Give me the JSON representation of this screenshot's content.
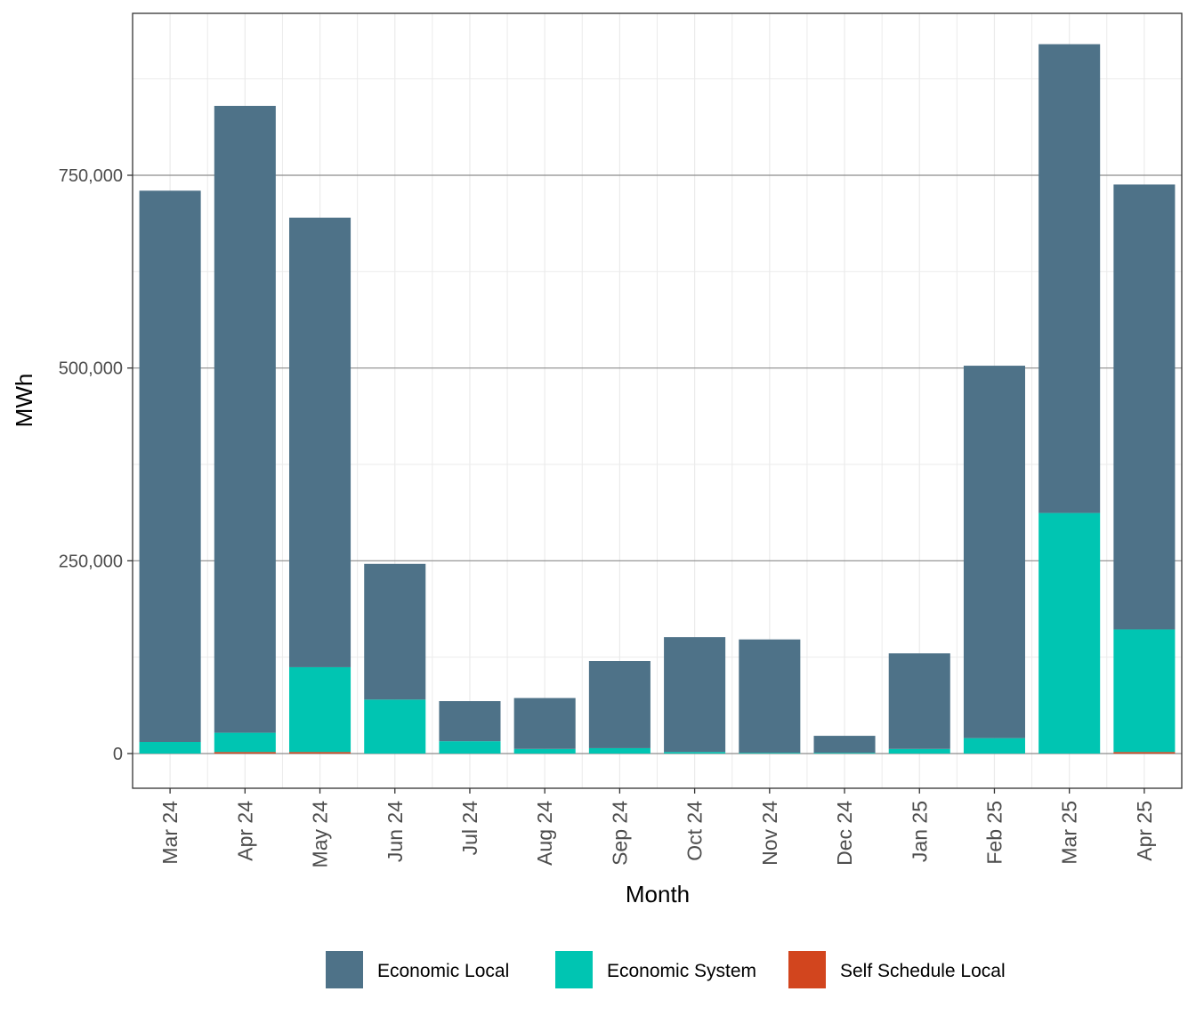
{
  "chart_data": {
    "type": "bar",
    "stacked": true,
    "categories": [
      "Mar 24",
      "Apr 24",
      "May 24",
      "Jun 24",
      "Jul 24",
      "Aug 24",
      "Sep 24",
      "Oct 24",
      "Nov 24",
      "Dec 24",
      "Jan 25",
      "Feb 25",
      "Mar 25",
      "Apr 25"
    ],
    "series": [
      {
        "name": "Self Schedule Local",
        "color": "#d2451e",
        "values": [
          0,
          2000,
          2000,
          0,
          0,
          0,
          0,
          0,
          0,
          0,
          0,
          0,
          0,
          2000
        ]
      },
      {
        "name": "Economic System",
        "color": "#00c5b2",
        "values": [
          15000,
          25000,
          110000,
          70000,
          16000,
          6000,
          7000,
          2000,
          1000,
          1000,
          6000,
          20000,
          312000,
          159000
        ]
      },
      {
        "name": "Economic Local",
        "color": "#4e7288",
        "values": [
          715000,
          813000,
          583000,
          176000,
          52000,
          66000,
          113000,
          149000,
          147000,
          22000,
          124000,
          483000,
          608000,
          577000
        ]
      }
    ],
    "xlabel": "Month",
    "ylabel": "MWh",
    "ylim": [
      -45000,
      960000
    ],
    "yticks": [
      0,
      250000,
      500000,
      750000
    ],
    "ytick_labels": [
      "0",
      "250,000",
      "500,000",
      "750,000"
    ],
    "grid": true,
    "legend": {
      "position": "bottom",
      "order": [
        "Economic Local",
        "Economic System",
        "Self Schedule Local"
      ]
    }
  }
}
